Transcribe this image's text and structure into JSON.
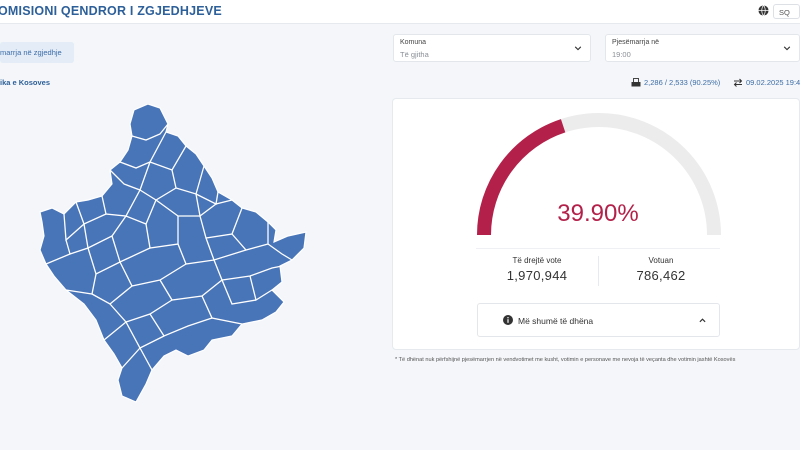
{
  "header": {
    "title": "OMISIONI QENDROR I ZGJEDHJEVE",
    "language": "SQ",
    "icon": "globe-icon"
  },
  "tab": {
    "label": "marrja në zgjedhje"
  },
  "filters": {
    "municipality": {
      "label": "Komuna",
      "value": "Të gjitha"
    },
    "turnout_time": {
      "label": "Pjesëmarrja në",
      "value": "19:00"
    }
  },
  "region": {
    "label": "ika e Kosoves"
  },
  "status": {
    "stations": "2,286 / 2,533 (90.25%)",
    "updated": "09.02.2025 19:4"
  },
  "gauge": {
    "percent": 39.9,
    "percent_label": "39.90%",
    "fill_color": "#b3214a",
    "track_color": "#ececec"
  },
  "stats": {
    "eligible_label": "Të drejtë vote",
    "eligible_value": "1,970,944",
    "voted_label": "Votuan",
    "voted_value": "786,462"
  },
  "more": {
    "label": "Më shumë të dhëna"
  },
  "footnote": "* Të dhënat nuk përfshijnë pjesëmarrjen në vendvotimet me kusht, votimin e personave me nevoja të veçanta dhe votimin jashtë Kosovës",
  "colors": {
    "brand": "#2d5f99",
    "map_fill": "#4874b8"
  }
}
